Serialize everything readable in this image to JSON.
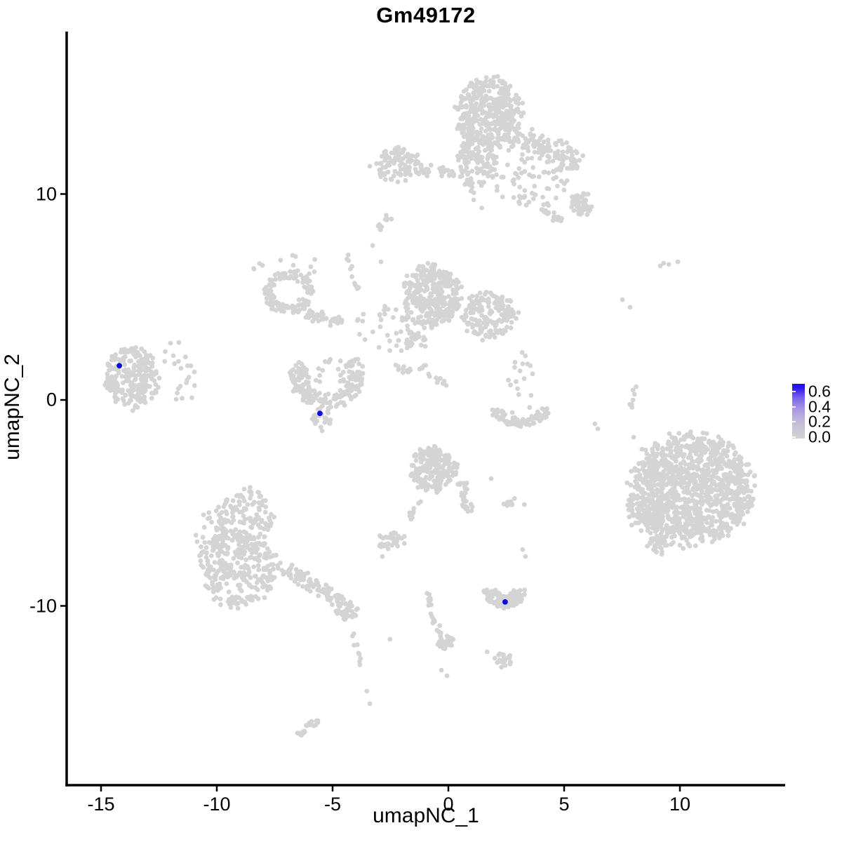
{
  "title": "Gm49172",
  "axes": {
    "x": {
      "label": "umapNC_1",
      "ticks": [
        "-15",
        "-10",
        "-5",
        "0",
        "5",
        "10"
      ],
      "tick_values": [
        -15,
        -10,
        -5,
        0,
        5,
        10
      ]
    },
    "y": {
      "label": "umapNC_2",
      "ticks": [
        "10",
        "0",
        "-10"
      ],
      "tick_values": [
        10,
        0,
        -10
      ]
    }
  },
  "legend": {
    "labels": [
      "0.6",
      "0.4",
      "0.2",
      "0.0"
    ],
    "label_values": [
      0.6,
      0.4,
      0.2,
      0.0
    ],
    "low_color": "#D3D3D3",
    "high_color": "#1C0DF2",
    "gradient_stops": [
      "#D3D3D3",
      "#C4BBDA",
      "#A896E2",
      "#7B60EA",
      "#2E18EF",
      "#1C0DF2"
    ]
  },
  "style": {
    "point_color": "#D4D4D4",
    "highlight_color": "#0A0AE8",
    "axis_color": "#000000",
    "point_radius": 3.4,
    "highlight_radius": 3.9
  },
  "chart_data": {
    "type": "scatter",
    "title": "Gm49172",
    "xlabel": "umapNC_1",
    "ylabel": "umapNC_2",
    "xlim": [
      -16.5,
      14.5
    ],
    "ylim": [
      -18.7,
      17.9
    ],
    "grid": false,
    "legend_position": "right",
    "color_scale": {
      "low": "lightgrey",
      "high": "blue",
      "breaks": [
        0.0,
        0.2,
        0.4,
        0.6
      ],
      "max_est": 0.7
    },
    "highlighted_cells": [
      {
        "x": -14.21,
        "y": 1.66,
        "value_est": 0.7
      },
      {
        "x": -5.55,
        "y": -0.65,
        "value_est": 0.7
      },
      {
        "x": 2.45,
        "y": -9.81,
        "value_est": 0.7
      }
    ],
    "clusters": [
      {
        "name": "top-main",
        "type": "blob",
        "cx": 1.76,
        "cy": 13.9,
        "rx": 1.42,
        "ry": 1.77,
        "n": 420,
        "seed": 11
      },
      {
        "name": "top-neck",
        "type": "blob",
        "cx": 1.24,
        "cy": 11.5,
        "rx": 0.97,
        "ry": 1.3,
        "n": 110,
        "seed": 12
      },
      {
        "name": "top-neck-drip",
        "type": "band",
        "x1": 0.85,
        "y1": 10.6,
        "x2": 1.45,
        "y2": 9.1,
        "w": 0.18,
        "n": 6,
        "seed": 13
      },
      {
        "name": "top-right-band",
        "type": "band",
        "x1": 2.85,
        "y1": 12.74,
        "x2": 5.67,
        "y2": 11.52,
        "w": 0.8,
        "n": 120,
        "seed": 14
      },
      {
        "name": "top-right-scatter",
        "type": "blob",
        "cx": 3.58,
        "cy": 10.49,
        "rx": 1.65,
        "ry": 1.3,
        "n": 60,
        "seed": 15
      },
      {
        "name": "top-right-knot",
        "type": "blob",
        "cx": 5.73,
        "cy": 9.51,
        "rx": 0.5,
        "ry": 0.55,
        "n": 55,
        "seed": 16
      },
      {
        "name": "top-right-streak",
        "type": "band",
        "x1": 3.97,
        "y1": 9.3,
        "x2": 5.06,
        "y2": 8.62,
        "w": 0.28,
        "n": 20,
        "seed": 17
      },
      {
        "name": "top-left-blob",
        "type": "blob",
        "cx": -2.21,
        "cy": 11.45,
        "rx": 1.03,
        "ry": 0.85,
        "n": 100,
        "seed": 18
      },
      {
        "name": "top-left-tail",
        "type": "band",
        "x1": -1.18,
        "y1": 11.18,
        "x2": 0.33,
        "y2": 11.0,
        "w": 0.35,
        "n": 25,
        "seed": 19
      },
      {
        "name": "top-left-streak",
        "type": "band",
        "x1": -3.12,
        "y1": 8.28,
        "x2": -2.52,
        "y2": 8.89,
        "w": 0.2,
        "n": 13,
        "seed": 20
      },
      {
        "name": "mid-strand",
        "type": "band",
        "x1": -4.45,
        "y1": 7.22,
        "x2": -3.85,
        "y2": 5.25,
        "w": 0.15,
        "n": 11,
        "seed": 21
      },
      {
        "name": "mid-ring",
        "type": "arc",
        "cx": -6.91,
        "cy": 5.25,
        "r": 1.08,
        "w": 0.45,
        "a1": 0,
        "a2": 360,
        "sy": 1,
        "n": 120,
        "seed": 22
      },
      {
        "name": "mid-ring-scatter",
        "type": "blob",
        "cx": -7.0,
        "cy": 6.44,
        "rx": 1.36,
        "ry": 0.7,
        "n": 16,
        "seed": 23
      },
      {
        "name": "mid-ring-hook",
        "type": "band",
        "x1": -6.15,
        "y1": 4.16,
        "x2": -4.45,
        "y2": 3.68,
        "w": 0.35,
        "n": 45,
        "seed": 24
      },
      {
        "name": "mid-main",
        "type": "blob",
        "cx": -0.7,
        "cy": 5.08,
        "rx": 1.21,
        "ry": 1.57,
        "n": 320,
        "seed": 25
      },
      {
        "name": "mid-right",
        "type": "blob",
        "cx": 1.7,
        "cy": 4.12,
        "rx": 1.09,
        "ry": 1.16,
        "n": 160,
        "seed": 26
      },
      {
        "name": "mid-right-tail",
        "type": "band",
        "x1": 2.55,
        "y1": 4.4,
        "x2": 3.09,
        "y2": 4.02,
        "w": 0.3,
        "n": 10,
        "seed": 27
      },
      {
        "name": "mid-scatter",
        "type": "blob",
        "cx": -2.52,
        "cy": 3.41,
        "rx": 1.5,
        "ry": 1.1,
        "n": 40,
        "seed": 28
      },
      {
        "name": "mid-knot",
        "type": "blob",
        "cx": -1.42,
        "cy": 2.83,
        "rx": 0.5,
        "ry": 0.5,
        "n": 22,
        "seed": 29
      },
      {
        "name": "mid-chain-a",
        "type": "blob",
        "cx": -2.0,
        "cy": 1.53,
        "rx": 0.45,
        "ry": 0.25,
        "n": 12,
        "seed": 30
      },
      {
        "name": "mid-chain-b",
        "type": "band",
        "x1": -1.18,
        "y1": 1.64,
        "x2": -0.09,
        "y2": 0.61,
        "w": 0.22,
        "n": 16,
        "seed": 31
      },
      {
        "name": "vshape",
        "type": "arc",
        "cx": -5.24,
        "cy": 1.16,
        "r": 1.6,
        "w": 0.7,
        "a1": 150,
        "a2": 395,
        "sy": 1,
        "n": 185,
        "seed": 32
      },
      {
        "name": "vshape-inner",
        "type": "blob",
        "cx": -5.24,
        "cy": 1.3,
        "rx": 1.0,
        "ry": 0.7,
        "n": 18,
        "seed": 33
      },
      {
        "name": "vshape-tip",
        "type": "blob",
        "cx": -5.48,
        "cy": -0.89,
        "rx": 0.42,
        "ry": 0.5,
        "n": 26,
        "seed": 34
      },
      {
        "name": "left-island",
        "type": "blob",
        "cx": -13.7,
        "cy": 1.09,
        "rx": 1.15,
        "ry": 1.47,
        "n": 240,
        "seed": 35
      },
      {
        "name": "left-island-wing",
        "type": "blob",
        "cx": -11.88,
        "cy": 1.02,
        "rx": 1.05,
        "ry": 1.3,
        "n": 20,
        "seed": 36
      },
      {
        "name": "bottomleft-top",
        "type": "blob",
        "cx": -8.79,
        "cy": -5.76,
        "rx": 1.27,
        "ry": 1.43,
        "n": 140,
        "seed": 37
      },
      {
        "name": "bottomleft-main",
        "type": "blob",
        "cx": -9.0,
        "cy": -8.25,
        "rx": 1.73,
        "ry": 1.77,
        "n": 260,
        "seed": 38
      },
      {
        "name": "bottomleft-left",
        "type": "blob",
        "cx": -10.2,
        "cy": -7.05,
        "rx": 0.76,
        "ry": 1.53,
        "n": 55,
        "seed": 39
      },
      {
        "name": "bottomleft-tail",
        "type": "band",
        "x1": -7.0,
        "y1": -8.24,
        "x2": -4.58,
        "y2": -9.81,
        "w": 0.42,
        "n": 85,
        "seed": 40
      },
      {
        "name": "bottomleft-knot",
        "type": "blob",
        "cx": -4.36,
        "cy": -10.26,
        "rx": 0.5,
        "ry": 0.48,
        "n": 40,
        "seed": 41
      },
      {
        "name": "bottomleft-drip",
        "type": "band",
        "x1": -4.12,
        "y1": -11.35,
        "x2": -3.64,
        "y2": -13.36,
        "w": 0.12,
        "n": 9,
        "seed": 42
      },
      {
        "name": "bottomleft-streak",
        "type": "band",
        "x1": -6.42,
        "y1": -16.29,
        "x2": -5.67,
        "y2": -15.54,
        "w": 0.22,
        "n": 20,
        "seed": 43
      },
      {
        "name": "bottomcenter-main",
        "type": "blob",
        "cx": -0.64,
        "cy": -3.44,
        "rx": 1.0,
        "ry": 1.06,
        "n": 185,
        "seed": 44
      },
      {
        "name": "bottomcenter-arm",
        "type": "band",
        "x1": 0.58,
        "y1": -4.02,
        "x2": 0.88,
        "y2": -5.45,
        "w": 0.3,
        "n": 30,
        "seed": 45
      },
      {
        "name": "bottomcenter-topdots",
        "type": "blob",
        "cx": -1.18,
        "cy": -2.39,
        "rx": 0.67,
        "ry": 0.41,
        "n": 8,
        "seed": 46
      },
      {
        "name": "bottomcenter-leftchain",
        "type": "band",
        "x1": -1.3,
        "y1": -4.87,
        "x2": -1.76,
        "y2": -6.03,
        "w": 0.15,
        "n": 10,
        "seed": 47
      },
      {
        "name": "bottomcenter-isle",
        "type": "blob",
        "cx": -2.45,
        "cy": -6.85,
        "rx": 0.67,
        "ry": 0.44,
        "n": 35,
        "seed": 48
      },
      {
        "name": "bottomcenter-strand-a",
        "type": "band",
        "x1": -0.91,
        "y1": -9.23,
        "x2": -0.7,
        "y2": -10.56,
        "w": 0.14,
        "n": 10,
        "seed": 49
      },
      {
        "name": "bottomcenter-strand-b",
        "type": "band",
        "x1": -0.7,
        "y1": -10.56,
        "x2": -0.18,
        "y2": -11.65,
        "w": 0.14,
        "n": 10,
        "seed": 50
      },
      {
        "name": "bottomcenter-knot",
        "type": "blob",
        "cx": -0.15,
        "cy": -11.79,
        "rx": 0.4,
        "ry": 0.37,
        "n": 26,
        "seed": 51
      },
      {
        "name": "crescent",
        "type": "arc",
        "cx": 2.45,
        "cy": -9.13,
        "r": 0.95,
        "w": 0.55,
        "a1": 185,
        "a2": 355,
        "sy": 1,
        "n": 105,
        "seed": 52
      },
      {
        "name": "crescent-tailknot",
        "type": "blob",
        "cx": 2.33,
        "cy": -12.64,
        "rx": 0.4,
        "ry": 0.34,
        "n": 22,
        "seed": 53
      },
      {
        "name": "crescent-above",
        "type": "blob",
        "cx": 2.88,
        "cy": -4.97,
        "rx": 0.55,
        "ry": 0.24,
        "n": 8,
        "seed": 54
      },
      {
        "name": "smile",
        "type": "arc",
        "cx": 3.12,
        "cy": -0.27,
        "r": 1.35,
        "w": 0.5,
        "a1": 190,
        "a2": 350,
        "sy": 0.75,
        "n": 90,
        "seed": 55
      },
      {
        "name": "smile-scatter",
        "type": "blob",
        "cx": 3.06,
        "cy": 0.85,
        "rx": 0.91,
        "ry": 1.53,
        "n": 18,
        "seed": 56
      },
      {
        "name": "right-main",
        "type": "blob",
        "cx": 10.48,
        "cy": -4.36,
        "rx": 2.67,
        "ry": 2.66,
        "n": 1150,
        "seed": 57
      },
      {
        "name": "right-left-lobe",
        "type": "blob",
        "cx": 8.58,
        "cy": -5.35,
        "rx": 0.85,
        "ry": 1.12,
        "n": 80,
        "seed": 58
      },
      {
        "name": "right-bottom-tip",
        "type": "blob",
        "cx": 9.12,
        "cy": -7.09,
        "rx": 0.55,
        "ry": 0.48,
        "n": 25,
        "seed": 59
      },
      {
        "name": "right-strand",
        "type": "band",
        "x1": 8.15,
        "y1": 0.92,
        "x2": 7.79,
        "y2": -0.55,
        "w": 0.12,
        "n": 8,
        "seed": 60
      },
      {
        "name": "outlier-singles",
        "type": "singles",
        "pts": [
          [
            -3.39,
            11.35
          ],
          [
            -3.27,
            7.5
          ],
          [
            -2.91,
            6.71
          ],
          [
            -11.64,
            2.79
          ],
          [
            -12.0,
            2.76
          ],
          [
            -10.97,
            1.36
          ],
          [
            -5.45,
            -1.5
          ],
          [
            -2.85,
            -7.6
          ],
          [
            -2.52,
            -11.62
          ],
          [
            -3.52,
            -14.14
          ],
          [
            -3.39,
            -14.75
          ],
          [
            1.67,
            -12.23
          ],
          [
            -0.3,
            -13.12
          ],
          [
            -0.06,
            -13.39
          ],
          [
            3.21,
            -7.26
          ],
          [
            3.33,
            -7.6
          ],
          [
            1.85,
            -3.82
          ],
          [
            6.33,
            -1.16
          ],
          [
            6.45,
            -1.4
          ],
          [
            8.0,
            -1.81
          ],
          [
            9.3,
            6.64
          ],
          [
            9.52,
            6.58
          ],
          [
            9.15,
            6.51
          ],
          [
            9.91,
            6.71
          ],
          [
            7.52,
            4.87
          ],
          [
            7.85,
            4.5
          ],
          [
            11.0,
            -1.6
          ]
        ]
      }
    ]
  }
}
